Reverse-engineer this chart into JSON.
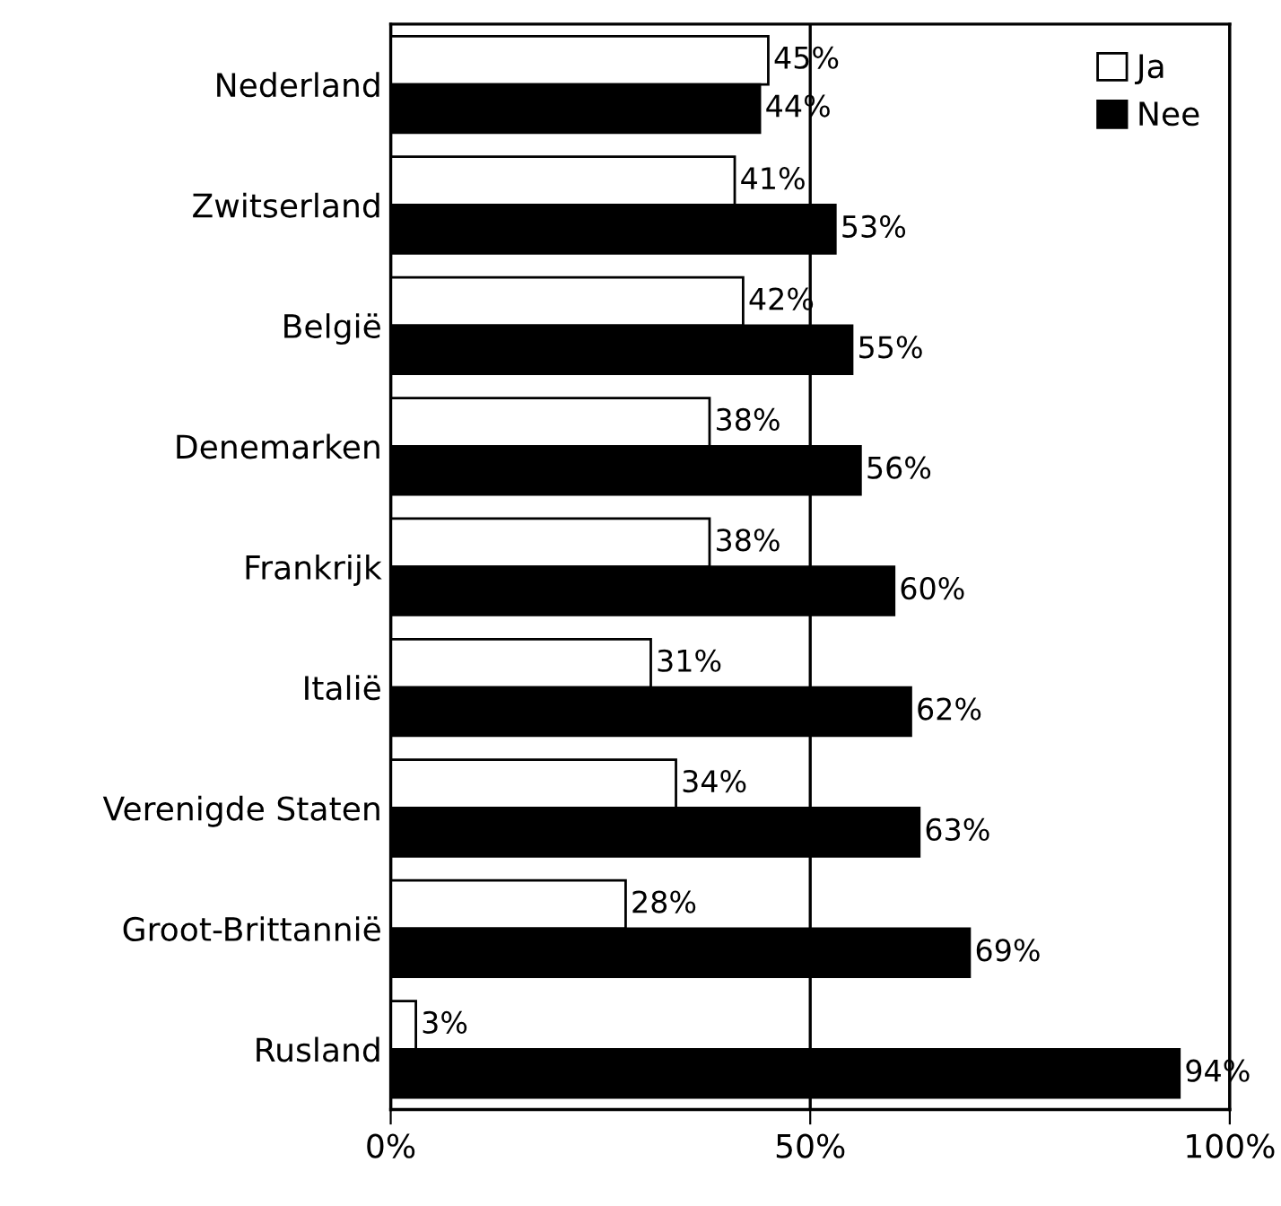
{
  "chart_data": {
    "type": "bar",
    "orientation": "horizontal",
    "categories": [
      "Nederland",
      "Zwitserland",
      "België",
      "Denemarken",
      "Frankrijk",
      "Italië",
      "Verenigde Staten",
      "Groot-Brittannië",
      "Rusland"
    ],
    "series": [
      {
        "name": "Ja",
        "color": "#ffffff",
        "values": [
          45,
          41,
          42,
          38,
          38,
          31,
          34,
          28,
          3
        ],
        "value_labels": [
          "45%",
          "41%",
          "42%",
          "38%",
          "38%",
          "31%",
          "34%",
          "28%",
          "3%"
        ]
      },
      {
        "name": "Nee",
        "color": "#000000",
        "values": [
          44,
          53,
          55,
          56,
          60,
          62,
          63,
          69,
          94
        ],
        "value_labels": [
          "44%",
          "53%",
          "55%",
          "56%",
          "60%",
          "62%",
          "63%",
          "69%",
          "94%"
        ]
      }
    ],
    "xlim": [
      0,
      100
    ],
    "xticks": [
      {
        "value": 0,
        "label": "0%"
      },
      {
        "value": 50,
        "label": "50%"
      },
      {
        "value": 100,
        "label": "100%"
      }
    ],
    "grid": "x",
    "legend": "top right"
  }
}
